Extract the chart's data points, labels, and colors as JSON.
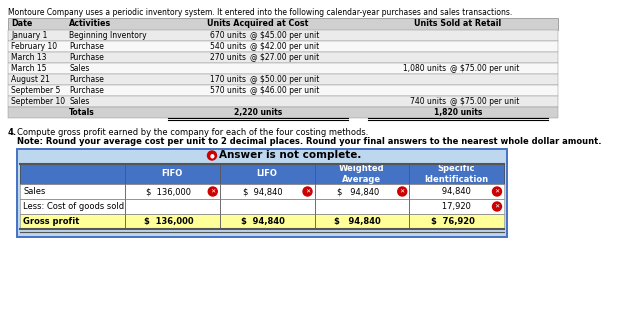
{
  "title": "Montoure Company uses a periodic inventory system. It entered into the following calendar-year purchases and sales transactions.",
  "table1_headers": [
    "Date",
    "Activities",
    "Units Acquired at Cost",
    "Units Sold at Retail"
  ],
  "table1_rows": [
    [
      "January 1",
      "Beginning Inventory",
      "670 units   @ $45.00 per unit",
      ""
    ],
    [
      "February 10",
      "Purchase",
      "540 units   @ $42.00 per unit",
      ""
    ],
    [
      "March 13",
      "Purchase",
      "270 units   @ $27.00 per unit",
      ""
    ],
    [
      "March 15",
      "Sales",
      "",
      "1,080 units   @ $75.00 per unit"
    ],
    [
      "August 21",
      "Purchase",
      "170 units   @ $50.00 per unit",
      ""
    ],
    [
      "September 5",
      "Purchase",
      "570 units   @ $46.00 per unit",
      ""
    ],
    [
      "September 10",
      "Sales",
      "",
      "740 units   @ $75.00 per unit"
    ],
    [
      "",
      "Totals",
      "2,220 units",
      "1,820 units"
    ]
  ],
  "question_num": "4.",
  "question_text": "Compute gross profit earned by the company for each of the four costing methods.",
  "note_text": "Note: Round your average cost per unit to 2 decimal places. Round your final answers to the nearest whole dollar amount.",
  "answer_banner": "Answer is not complete.",
  "col_headers": [
    "FIFO",
    "LIFO",
    "Weighted\nAverage",
    "Specific\nIdentification"
  ],
  "row_labels": [
    "Sales",
    "Less: Cost of goods sold",
    "Gross profit"
  ],
  "sales_values": [
    "$  136,000",
    "$  94,840",
    "$   94,840",
    "   94,840"
  ],
  "cogs_values": [
    "",
    "",
    "",
    "   17,920"
  ],
  "gp_values": [
    "$  136,000",
    "$  94,840",
    "$   94,840",
    "$  76,920"
  ],
  "sales_dollars": [
    "$",
    "$",
    "$",
    "$"
  ],
  "gp_dollars": [
    "$",
    "$",
    "$",
    "$"
  ],
  "sales_x_marks": [
    true,
    true,
    true,
    true
  ],
  "cogs_x_marks": [
    false,
    false,
    false,
    true
  ],
  "gp_x_marks": [
    false,
    false,
    false,
    false
  ],
  "header_bg": "#4472C4",
  "header_text": "#FFFFFF",
  "banner_bg": "#BDD7EE",
  "answer_circle_color": "#CC0000",
  "t1_header_bg": "#D0D0D0",
  "t1_row_bg_odd": "#EBEBEB",
  "t1_row_bg_even": "#F8F8F8",
  "t1_totals_bg": "#D0D0D0",
  "gp_row_bg": "#FFFF99",
  "inner_border": "#555555",
  "sales_row_bg": "#FFFFFF",
  "cogs_row_bg": "#FFFFFF"
}
